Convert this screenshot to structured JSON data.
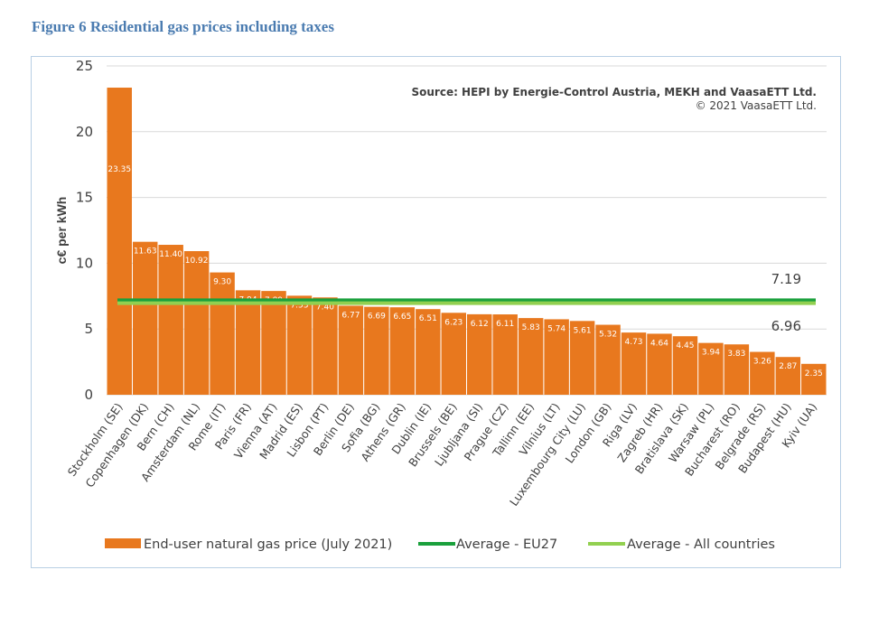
{
  "figure_title": "Figure 6 Residential gas prices including taxes",
  "source_line1": "Source: HEPI by Energie-Control Austria, MEKH and VaasaETT Ltd.",
  "source_line2": "© 2021 VaasaETT Ltd.",
  "colors": {
    "bar": "#e8781e",
    "eu27_line": "#1aa03c",
    "all_line": "#92d050",
    "axis_text": "#404040",
    "title": "#4a7bb0"
  },
  "chart_data": {
    "type": "bar",
    "title": "Figure 6 Residential gas prices including taxes",
    "ylabel": "c€ per kWh",
    "xlabel": "",
    "ylim": [
      0,
      25
    ],
    "yticks": [
      0,
      5,
      10,
      15,
      20,
      25
    ],
    "grid": true,
    "legend_position": "bottom",
    "categories": [
      "Stockholm (SE)",
      "Copenhagen (DK)",
      "Bern (CH)",
      "Amsterdam (NL)",
      "Rome (IT)",
      "Paris (FR)",
      "Vienna (AT)",
      "Madrid (ES)",
      "Lisbon (PT)",
      "Berlin (DE)",
      "Sofia (BG)",
      "Athens (GR)",
      "Dublin (IE)",
      "Brussels (BE)",
      "Ljubljana (SI)",
      "Prague (CZ)",
      "Tallinn (EE)",
      "Vilnius (LT)",
      "Luxembourg City (LU)",
      "London (GB)",
      "Riga (LV)",
      "Zagreb (HR)",
      "Bratislava (SK)",
      "Warsaw (PL)",
      "Bucharest (RO)",
      "Belgrade (RS)",
      "Budapest (HU)",
      "Kyiv (UA)"
    ],
    "series": [
      {
        "name": "End-user natural gas price (July 2021)",
        "values": [
          23.35,
          11.63,
          11.4,
          10.92,
          9.3,
          7.94,
          7.89,
          7.53,
          7.4,
          6.77,
          6.69,
          6.65,
          6.51,
          6.23,
          6.12,
          6.11,
          5.83,
          5.74,
          5.61,
          5.32,
          4.73,
          4.64,
          4.45,
          3.94,
          3.83,
          3.26,
          2.87,
          2.35
        ]
      }
    ],
    "value_labels": [
      "23.35",
      "11.63",
      "11.40",
      "10.92",
      "9.30",
      "7.94",
      "7.89",
      "7.53",
      "7.40",
      "6.77",
      "6.69",
      "6.65",
      "6.51",
      "6.23",
      "6.12",
      "6.11",
      "5.83",
      "5.74",
      "5.61",
      "5.32",
      "4.73",
      "4.64",
      "4.45",
      "3.94",
      "3.83",
      "3.26",
      "2.87",
      "2.35"
    ],
    "reference_lines": [
      {
        "name": "Average - EU27",
        "value": 7.19,
        "label": "7.19"
      },
      {
        "name": "Average - All countries",
        "value": 6.96,
        "label": "6.96"
      }
    ]
  }
}
